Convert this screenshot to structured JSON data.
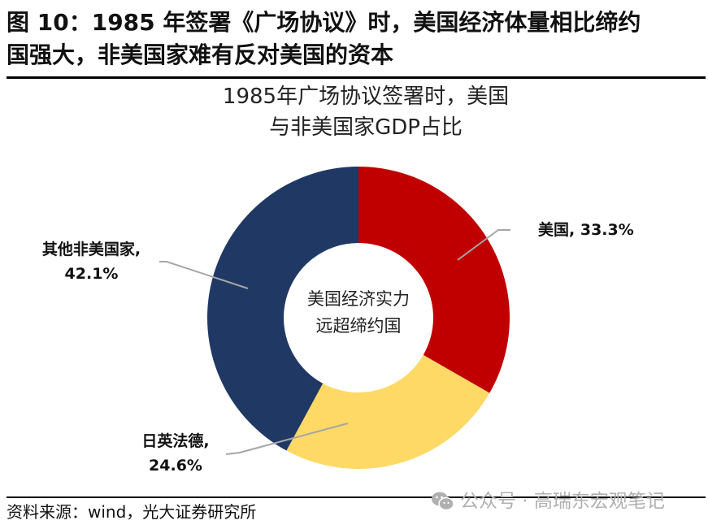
{
  "figure": {
    "title_line1": "图 10：1985 年签署《广场协议》时，美国经济体量相比缔约",
    "title_line2": "国强大，非美国家难有反对美国的资本"
  },
  "chart": {
    "title_line1": "1985年广场协议签署时，美国",
    "title_line2": "与非美国家GDP占比",
    "center_line1": "美国经济实力",
    "center_line2": "远超缔约国",
    "labels": {
      "us_name": "美国,",
      "us_value": "33.3%",
      "other_name": "其他非美国家,",
      "other_value": "42.1%",
      "jpukfrde_name": "日英法德,",
      "jpukfrde_value": "24.6%"
    }
  },
  "chart_data": {
    "type": "pie",
    "variant": "donut",
    "title": "1985年广场协议签署时，美国与非美国家GDP占比",
    "center_annotation": "美国经济实力远超缔约国",
    "categories": [
      "美国",
      "日英法德",
      "其他非美国家"
    ],
    "values": [
      33.3,
      24.6,
      42.1
    ],
    "unit": "%",
    "colors": [
      "#C00000",
      "#FFD966",
      "#203864"
    ],
    "start_angle": "12 o'clock, clockwise",
    "legend": "none (data labels with leader lines)"
  },
  "footer": {
    "source": "资料来源：wind，光大证券研究所",
    "watermark": "公众号 · 高瑞东宏观笔记"
  },
  "colors": {
    "us": "#C00000",
    "jpukfrde": "#FFD966",
    "other": "#203864",
    "leader_line": "#A6A6A6",
    "watermark": "#B0B0B0"
  }
}
